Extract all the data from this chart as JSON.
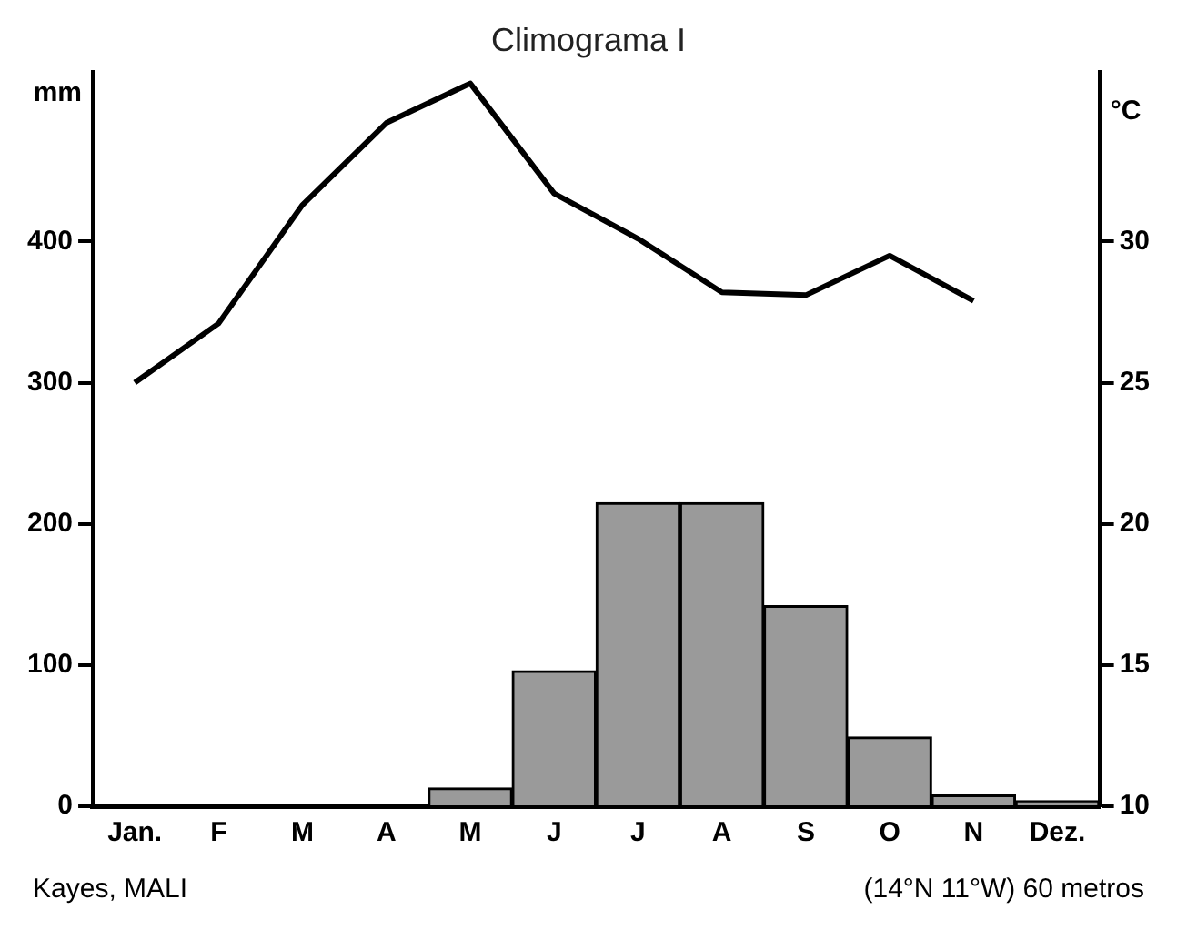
{
  "chart_data": {
    "type": "bar",
    "title": "Climograma I",
    "ylabel": "mm",
    "y2label": "°C",
    "categories": [
      "Jan.",
      "F",
      "M",
      "A",
      "M",
      "J",
      "J",
      "A",
      "S",
      "O",
      "N",
      "Dez."
    ],
    "series": [
      {
        "color": "#9a9a9a",
        "values": [
          0,
          0,
          0,
          0,
          13,
          96,
          215,
          215,
          142,
          49,
          8,
          4
        ]
      },
      {
        "type": "line",
        "axis": "y2",
        "color": "#000000",
        "values": [
          25,
          27.1,
          31.3,
          34.2,
          35.6,
          31.7,
          30.1,
          28.2,
          28.1,
          29.5,
          27.9,
          null
        ]
      }
    ],
    "ylim": [
      0,
      520
    ],
    "yticks": [
      0,
      100,
      200,
      300,
      400
    ],
    "y2lim": [
      10,
      36
    ],
    "y2ticks": [
      10,
      15,
      20,
      25,
      30
    ],
    "grid": false,
    "legend": false,
    "marker": "none",
    "line_style": "solid",
    "annotations": [
      "Kayes, MALI",
      "(14°N 11°W) 60 metros"
    ]
  }
}
